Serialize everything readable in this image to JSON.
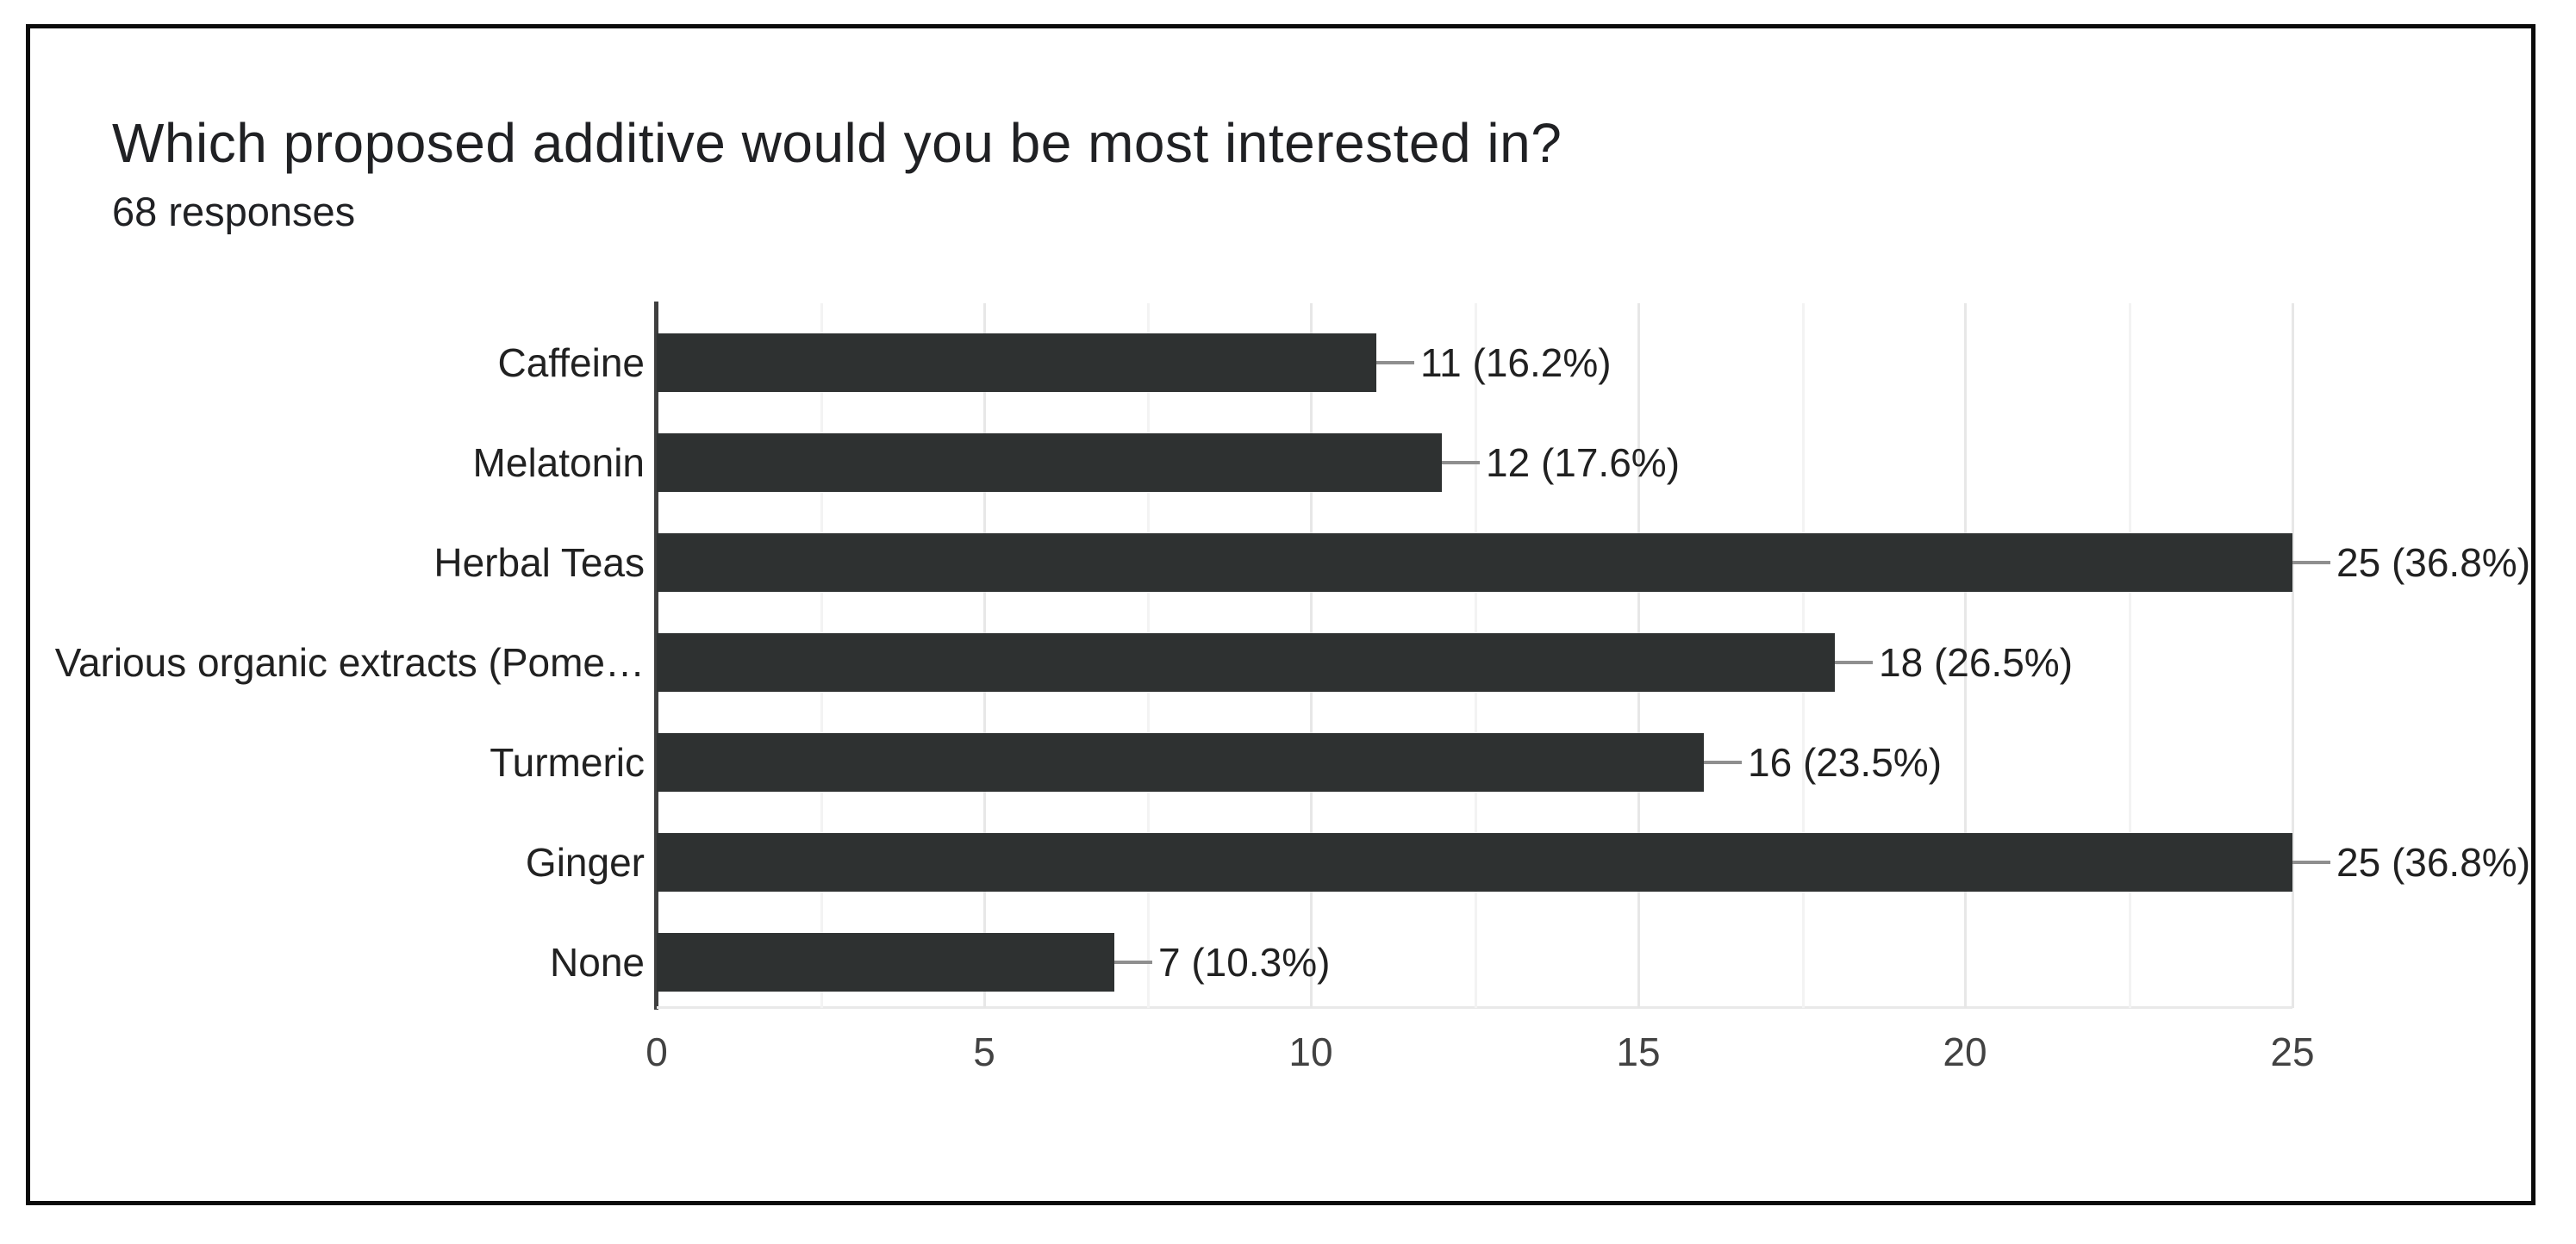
{
  "figure": {
    "title": "Which proposed additive would you be most interested in?",
    "subtitle": "68 responses"
  },
  "chart_data": {
    "type": "bar",
    "orientation": "horizontal",
    "title": "Which proposed additive would you be most interested in?",
    "subtitle": "68 responses",
    "total_responses": 68,
    "categories": [
      "Caffeine",
      "Melatonin",
      "Herbal Teas",
      "Various organic extracts (Pome…",
      "Turmeric",
      "Ginger",
      "None"
    ],
    "values": [
      11,
      12,
      25,
      18,
      16,
      25,
      7
    ],
    "value_labels": [
      "11 (16.2%)",
      "12 (17.6%)",
      "25 (36.8%)",
      "18 (26.5%)",
      "16 (23.5%)",
      "25 (36.8%)",
      "7 (10.3%)"
    ],
    "x_ticks": [
      "0",
      "5",
      "10",
      "15",
      "20",
      "25"
    ],
    "x_tick_values": [
      0,
      5,
      10,
      15,
      20,
      25
    ],
    "xlim": [
      0,
      25
    ],
    "minor_grid_step": 2.5,
    "xlabel": "",
    "ylabel": "",
    "legend": "none",
    "colors": {
      "bar": "#2e3131",
      "axis_line": "#3f3f3f",
      "major_gridline": "#e7e7e7",
      "minor_gridline": "#f3f3f3",
      "connector": "#8f8f8f",
      "label_text": "#212121",
      "tick_text": "#424242",
      "frame_border": "#0b0b0b",
      "background": "#ffffff"
    }
  }
}
